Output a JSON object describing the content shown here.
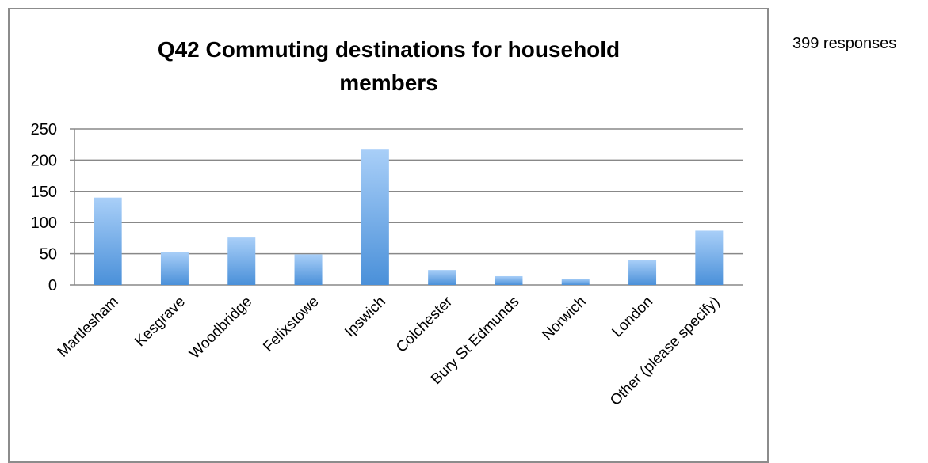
{
  "side_note": "399 responses",
  "chart_data": {
    "type": "bar",
    "title_lines": [
      "Q42 Commuting destinations for household",
      "members"
    ],
    "categories": [
      "Martlesham",
      "Kesgrave",
      "Woodbridge",
      "Felixstowe",
      "Ipswich",
      "Colchester",
      "Bury St Edmunds",
      "Norwich",
      "London",
      "Other (please specify)"
    ],
    "values": [
      140,
      53,
      76,
      49,
      218,
      24,
      14,
      10,
      40,
      87
    ],
    "ylim": [
      0,
      250
    ],
    "yticks": [
      0,
      50,
      100,
      150,
      200,
      250
    ],
    "grid": true,
    "bar_color_top": "#a9cff8",
    "bar_color_bottom": "#4a90d9",
    "grid_color": "#888888"
  }
}
